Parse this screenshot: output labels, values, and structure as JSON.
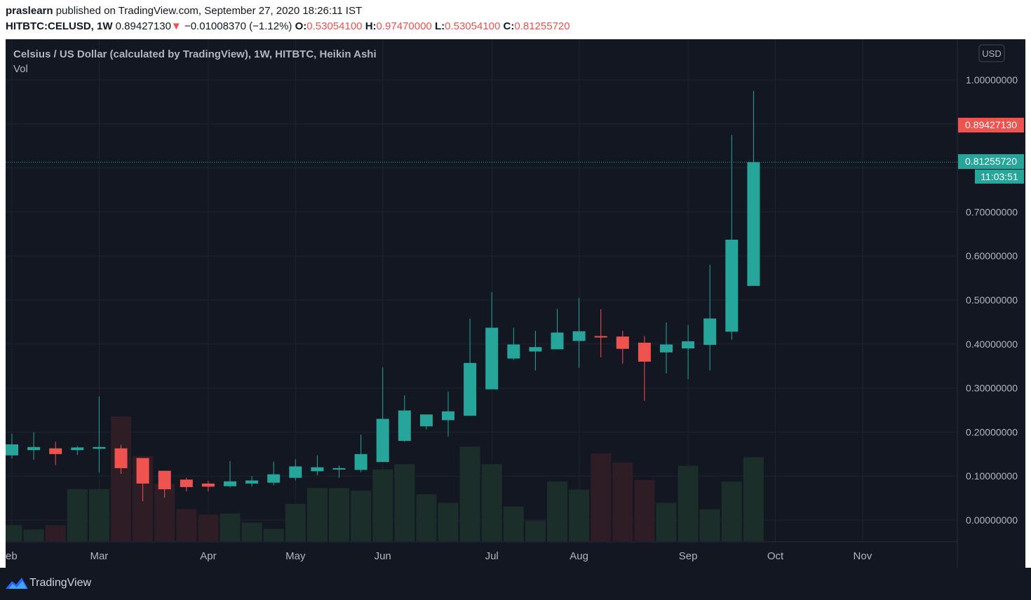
{
  "header": {
    "publisher": "praslearn",
    "published_text": "published on TradingView.com, September 27, 2020 18:26:11 IST",
    "symbol": "HITBTC:CELUSD, 1W",
    "last_price": "0.89427130",
    "change_arrow": "▼",
    "change": "−0.01008370 (−1.12%)",
    "open_label": "O:",
    "open": "0.53054100",
    "high_label": "H:",
    "high": "0.97470000",
    "low_label": "L:",
    "low": "0.53054100",
    "close_label": "C:",
    "close": "0.81255720"
  },
  "legend": {
    "title": "Celsius / US Dollar (calculated by TradingView), 1W, HITBTC, Heikin Ashi",
    "volume": "Vol"
  },
  "currency_button": "USD",
  "price_tag_red": "0.89427130",
  "price_tag_green": "0.81255720",
  "countdown": "11:03:51",
  "footer_brand": "TradingView",
  "colors": {
    "up": "#26a69a",
    "down": "#ef5350",
    "vol_up": "#1b2e2a",
    "vol_down": "#2e1d24",
    "background": "#131722",
    "grid": "#1e2330",
    "text": "#b2b5be"
  },
  "chart_data": {
    "type": "candlestick",
    "style": "Heikin Ashi",
    "timeframe": "1W",
    "ylim": [
      -0.05,
      1.05
    ],
    "y_ticks": [
      "1.00000000",
      "0.70000000",
      "0.60000000",
      "0.50000000",
      "0.40000000",
      "0.30000000",
      "0.20000000",
      "0.10000000",
      "0.00000000"
    ],
    "y_tick_values": [
      1.0,
      0.7,
      0.6,
      0.5,
      0.4,
      0.3,
      0.2,
      0.1,
      0.0
    ],
    "x_labels": [
      "eb",
      "Mar",
      "Apr",
      "May",
      "Jun",
      "Jul",
      "Aug",
      "Sep",
      "Oct",
      "Nov"
    ],
    "x_label_weeks": [
      0,
      4,
      9,
      13,
      17,
      22,
      26,
      31,
      35,
      39
    ],
    "volume_max": 0.235,
    "candles": [
      {
        "o": 0.147,
        "h": 0.196,
        "l": 0.14,
        "c": 0.172,
        "v": 0.03
      },
      {
        "o": 0.159,
        "h": 0.2,
        "l": 0.137,
        "c": 0.166,
        "v": 0.022
      },
      {
        "o": 0.163,
        "h": 0.178,
        "l": 0.125,
        "c": 0.15,
        "v": 0.03
      },
      {
        "o": 0.159,
        "h": 0.168,
        "l": 0.148,
        "c": 0.165,
        "v": 0.098
      },
      {
        "o": 0.162,
        "h": 0.281,
        "l": 0.108,
        "c": 0.166,
        "v": 0.098
      },
      {
        "o": 0.163,
        "h": 0.171,
        "l": 0.105,
        "c": 0.118,
        "v": 0.235
      },
      {
        "o": 0.141,
        "h": 0.141,
        "l": 0.043,
        "c": 0.083,
        "v": 0.16
      },
      {
        "o": 0.112,
        "h": 0.112,
        "l": 0.051,
        "c": 0.07,
        "v": 0.108
      },
      {
        "o": 0.092,
        "h": 0.096,
        "l": 0.065,
        "c": 0.075,
        "v": 0.06
      },
      {
        "o": 0.083,
        "h": 0.089,
        "l": 0.065,
        "c": 0.076,
        "v": 0.05
      },
      {
        "o": 0.077,
        "h": 0.134,
        "l": 0.074,
        "c": 0.088,
        "v": 0.052
      },
      {
        "o": 0.083,
        "h": 0.1,
        "l": 0.076,
        "c": 0.09,
        "v": 0.035
      },
      {
        "o": 0.085,
        "h": 0.133,
        "l": 0.079,
        "c": 0.104,
        "v": 0.023
      },
      {
        "o": 0.096,
        "h": 0.138,
        "l": 0.09,
        "c": 0.122,
        "v": 0.07
      },
      {
        "o": 0.111,
        "h": 0.147,
        "l": 0.102,
        "c": 0.12,
        "v": 0.1
      },
      {
        "o": 0.116,
        "h": 0.124,
        "l": 0.096,
        "c": 0.118,
        "v": 0.1
      },
      {
        "o": 0.114,
        "h": 0.194,
        "l": 0.109,
        "c": 0.15,
        "v": 0.095
      },
      {
        "o": 0.132,
        "h": 0.347,
        "l": 0.132,
        "c": 0.23,
        "v": 0.135
      },
      {
        "o": 0.18,
        "h": 0.283,
        "l": 0.178,
        "c": 0.249,
        "v": 0.145
      },
      {
        "o": 0.213,
        "h": 0.24,
        "l": 0.206,
        "c": 0.24,
        "v": 0.088
      },
      {
        "o": 0.227,
        "h": 0.292,
        "l": 0.19,
        "c": 0.247,
        "v": 0.072
      },
      {
        "o": 0.237,
        "h": 0.458,
        "l": 0.237,
        "c": 0.357,
        "v": 0.178
      },
      {
        "o": 0.297,
        "h": 0.518,
        "l": 0.297,
        "c": 0.437,
        "v": 0.145
      },
      {
        "o": 0.367,
        "h": 0.437,
        "l": 0.364,
        "c": 0.399,
        "v": 0.065
      },
      {
        "o": 0.383,
        "h": 0.43,
        "l": 0.34,
        "c": 0.393,
        "v": 0.038
      },
      {
        "o": 0.388,
        "h": 0.48,
        "l": 0.388,
        "c": 0.426,
        "v": 0.112
      },
      {
        "o": 0.407,
        "h": 0.505,
        "l": 0.346,
        "c": 0.429,
        "v": 0.097
      },
      {
        "o": 0.418,
        "h": 0.479,
        "l": 0.37,
        "c": 0.415,
        "v": 0.165
      },
      {
        "o": 0.417,
        "h": 0.43,
        "l": 0.355,
        "c": 0.389,
        "v": 0.148
      },
      {
        "o": 0.403,
        "h": 0.418,
        "l": 0.271,
        "c": 0.36,
        "v": 0.115
      },
      {
        "o": 0.381,
        "h": 0.449,
        "l": 0.333,
        "c": 0.399,
        "v": 0.072
      },
      {
        "o": 0.39,
        "h": 0.443,
        "l": 0.32,
        "c": 0.406,
        "v": 0.142
      },
      {
        "o": 0.398,
        "h": 0.58,
        "l": 0.34,
        "c": 0.458,
        "v": 0.06
      },
      {
        "o": 0.428,
        "h": 0.875,
        "l": 0.41,
        "c": 0.637,
        "v": 0.112
      },
      {
        "o": 0.532,
        "h": 0.975,
        "l": 0.532,
        "c": 0.813,
        "v": 0.158
      }
    ]
  }
}
